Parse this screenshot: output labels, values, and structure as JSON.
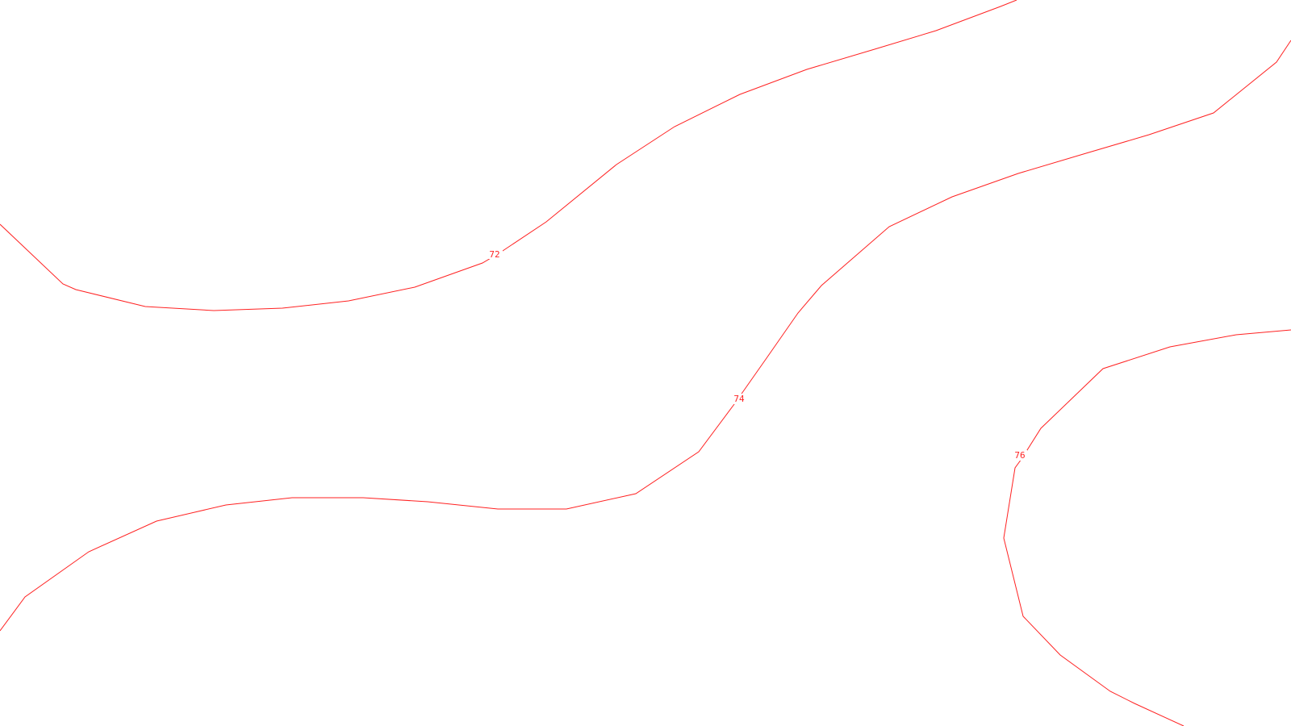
{
  "map": {
    "line_color": "#ff2222",
    "background": "#ffffff",
    "contours": [
      {
        "name": "contour-72",
        "label": "72"
      },
      {
        "name": "contour-74",
        "label": "74"
      },
      {
        "name": "contour-76",
        "label": "76"
      }
    ]
  }
}
